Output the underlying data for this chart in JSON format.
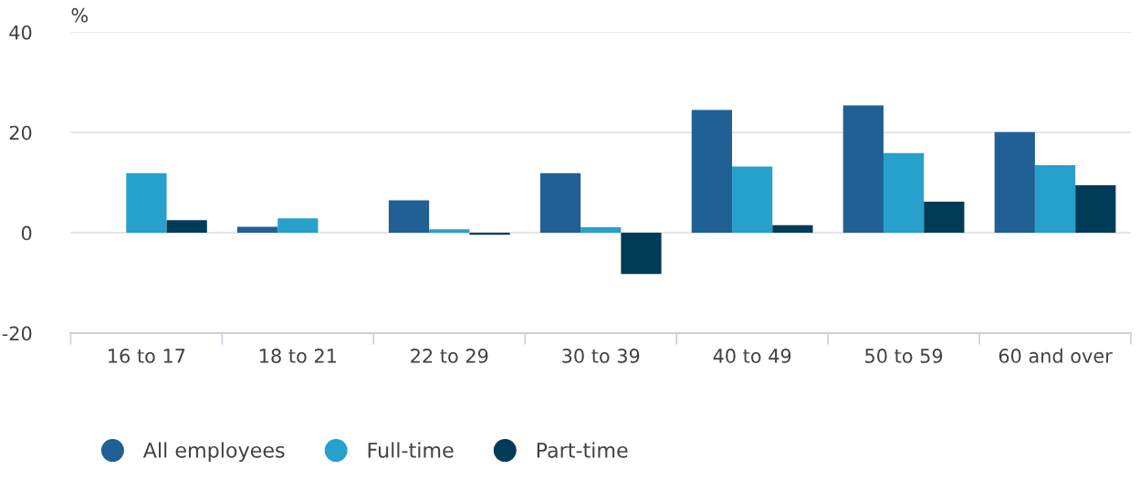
{
  "chart_data": {
    "type": "bar",
    "ylabel": "%",
    "categories": [
      "16 to 17",
      "18 to 21",
      "22 to 29",
      "30 to 39",
      "40 to 49",
      "50 to 59",
      "60 and over"
    ],
    "series": [
      {
        "name": "All employees",
        "color": "#206095",
        "values": [
          null,
          1.2,
          6.5,
          11.9,
          24.5,
          25.4,
          20.1
        ]
      },
      {
        "name": "Full-time",
        "color": "#27a0cc",
        "values": [
          11.9,
          2.9,
          0.7,
          1.1,
          13.2,
          15.9,
          13.5
        ]
      },
      {
        "name": "Part-time",
        "color": "#003c57",
        "values": [
          2.5,
          null,
          -0.4,
          -8.2,
          1.5,
          6.2,
          9.5
        ]
      }
    ],
    "ylim": [
      -20,
      40
    ],
    "yticks": [
      -20,
      0,
      20,
      40
    ],
    "grid": "y",
    "legend": "bottom"
  }
}
